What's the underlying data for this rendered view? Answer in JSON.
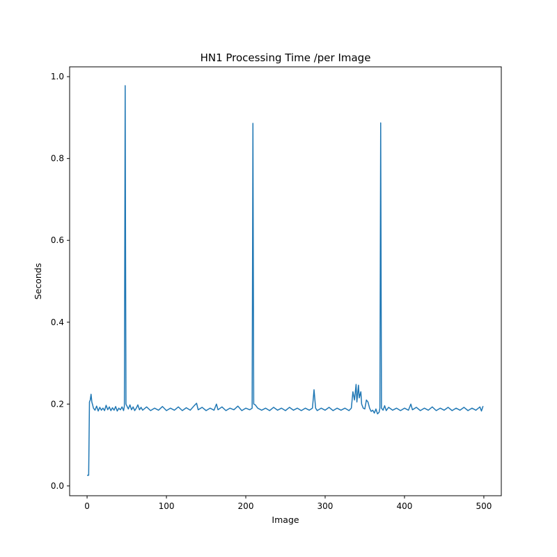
{
  "chart_data": {
    "type": "line",
    "title": "HN1 Processing Time /per Image",
    "xlabel": "Image",
    "ylabel": "Seconds",
    "xlim": [
      -22,
      522
    ],
    "ylim": [
      -0.024,
      1.024
    ],
    "xticks": [
      0,
      100,
      200,
      300,
      400,
      500
    ],
    "yticks": [
      0.0,
      0.2,
      0.4,
      0.6,
      0.8,
      1.0
    ],
    "xtick_labels": [
      "0",
      "100",
      "200",
      "300",
      "400",
      "500"
    ],
    "ytick_labels": [
      "0.0",
      "0.2",
      "0.4",
      "0.6",
      "0.8",
      "1.0"
    ],
    "grid": false,
    "series": [
      {
        "color": "#1f77b4",
        "points": [
          [
            0,
            0.026
          ],
          [
            1,
            0.026
          ],
          [
            2,
            0.026
          ],
          [
            3,
            0.205
          ],
          [
            4,
            0.21
          ],
          [
            5,
            0.224
          ],
          [
            6,
            0.205
          ],
          [
            7,
            0.198
          ],
          [
            8,
            0.19
          ],
          [
            10,
            0.185
          ],
          [
            12,
            0.195
          ],
          [
            14,
            0.183
          ],
          [
            16,
            0.192
          ],
          [
            18,
            0.185
          ],
          [
            20,
            0.19
          ],
          [
            22,
            0.184
          ],
          [
            24,
            0.197
          ],
          [
            26,
            0.186
          ],
          [
            28,
            0.193
          ],
          [
            30,
            0.184
          ],
          [
            32,
            0.191
          ],
          [
            34,
            0.185
          ],
          [
            36,
            0.194
          ],
          [
            38,
            0.183
          ],
          [
            40,
            0.19
          ],
          [
            42,
            0.186
          ],
          [
            44,
            0.193
          ],
          [
            46,
            0.184
          ],
          [
            47,
            0.195
          ],
          [
            48,
            0.978
          ],
          [
            49,
            0.2
          ],
          [
            50,
            0.196
          ],
          [
            52,
            0.188
          ],
          [
            54,
            0.198
          ],
          [
            56,
            0.186
          ],
          [
            58,
            0.193
          ],
          [
            60,
            0.184
          ],
          [
            62,
            0.19
          ],
          [
            64,
            0.198
          ],
          [
            66,
            0.186
          ],
          [
            68,
            0.192
          ],
          [
            70,
            0.185
          ],
          [
            75,
            0.193
          ],
          [
            80,
            0.184
          ],
          [
            85,
            0.19
          ],
          [
            90,
            0.185
          ],
          [
            95,
            0.194
          ],
          [
            100,
            0.184
          ],
          [
            105,
            0.19
          ],
          [
            110,
            0.185
          ],
          [
            115,
            0.193
          ],
          [
            120,
            0.184
          ],
          [
            125,
            0.191
          ],
          [
            130,
            0.185
          ],
          [
            135,
            0.196
          ],
          [
            138,
            0.202
          ],
          [
            140,
            0.186
          ],
          [
            145,
            0.192
          ],
          [
            150,
            0.184
          ],
          [
            155,
            0.19
          ],
          [
            160,
            0.185
          ],
          [
            163,
            0.2
          ],
          [
            165,
            0.186
          ],
          [
            170,
            0.193
          ],
          [
            175,
            0.184
          ],
          [
            180,
            0.19
          ],
          [
            185,
            0.186
          ],
          [
            190,
            0.195
          ],
          [
            195,
            0.184
          ],
          [
            200,
            0.19
          ],
          [
            205,
            0.186
          ],
          [
            208,
            0.19
          ],
          [
            209,
            0.886
          ],
          [
            210,
            0.2
          ],
          [
            212,
            0.198
          ],
          [
            215,
            0.19
          ],
          [
            220,
            0.185
          ],
          [
            225,
            0.19
          ],
          [
            230,
            0.184
          ],
          [
            235,
            0.192
          ],
          [
            240,
            0.185
          ],
          [
            245,
            0.19
          ],
          [
            250,
            0.184
          ],
          [
            255,
            0.192
          ],
          [
            260,
            0.185
          ],
          [
            265,
            0.19
          ],
          [
            270,
            0.184
          ],
          [
            275,
            0.19
          ],
          [
            280,
            0.185
          ],
          [
            284,
            0.19
          ],
          [
            286,
            0.235
          ],
          [
            288,
            0.19
          ],
          [
            290,
            0.184
          ],
          [
            295,
            0.19
          ],
          [
            300,
            0.185
          ],
          [
            305,
            0.192
          ],
          [
            310,
            0.184
          ],
          [
            315,
            0.19
          ],
          [
            320,
            0.185
          ],
          [
            325,
            0.19
          ],
          [
            330,
            0.184
          ],
          [
            333,
            0.19
          ],
          [
            335,
            0.23
          ],
          [
            337,
            0.21
          ],
          [
            339,
            0.248
          ],
          [
            340,
            0.205
          ],
          [
            342,
            0.246
          ],
          [
            343,
            0.215
          ],
          [
            345,
            0.23
          ],
          [
            346,
            0.2
          ],
          [
            348,
            0.19
          ],
          [
            350,
            0.188
          ],
          [
            352,
            0.21
          ],
          [
            354,
            0.205
          ],
          [
            356,
            0.19
          ],
          [
            358,
            0.182
          ],
          [
            360,
            0.185
          ],
          [
            362,
            0.178
          ],
          [
            364,
            0.188
          ],
          [
            366,
            0.176
          ],
          [
            368,
            0.18
          ],
          [
            369,
            0.19
          ],
          [
            370,
            0.887
          ],
          [
            371,
            0.19
          ],
          [
            373,
            0.185
          ],
          [
            375,
            0.196
          ],
          [
            377,
            0.184
          ],
          [
            380,
            0.192
          ],
          [
            385,
            0.185
          ],
          [
            390,
            0.19
          ],
          [
            395,
            0.184
          ],
          [
            400,
            0.19
          ],
          [
            405,
            0.185
          ],
          [
            408,
            0.2
          ],
          [
            410,
            0.186
          ],
          [
            415,
            0.192
          ],
          [
            420,
            0.184
          ],
          [
            425,
            0.19
          ],
          [
            430,
            0.185
          ],
          [
            435,
            0.193
          ],
          [
            440,
            0.184
          ],
          [
            445,
            0.19
          ],
          [
            450,
            0.185
          ],
          [
            455,
            0.192
          ],
          [
            460,
            0.184
          ],
          [
            465,
            0.19
          ],
          [
            470,
            0.185
          ],
          [
            475,
            0.192
          ],
          [
            480,
            0.184
          ],
          [
            485,
            0.19
          ],
          [
            490,
            0.185
          ],
          [
            495,
            0.193
          ],
          [
            497,
            0.183
          ],
          [
            499,
            0.195
          ]
        ]
      }
    ]
  }
}
